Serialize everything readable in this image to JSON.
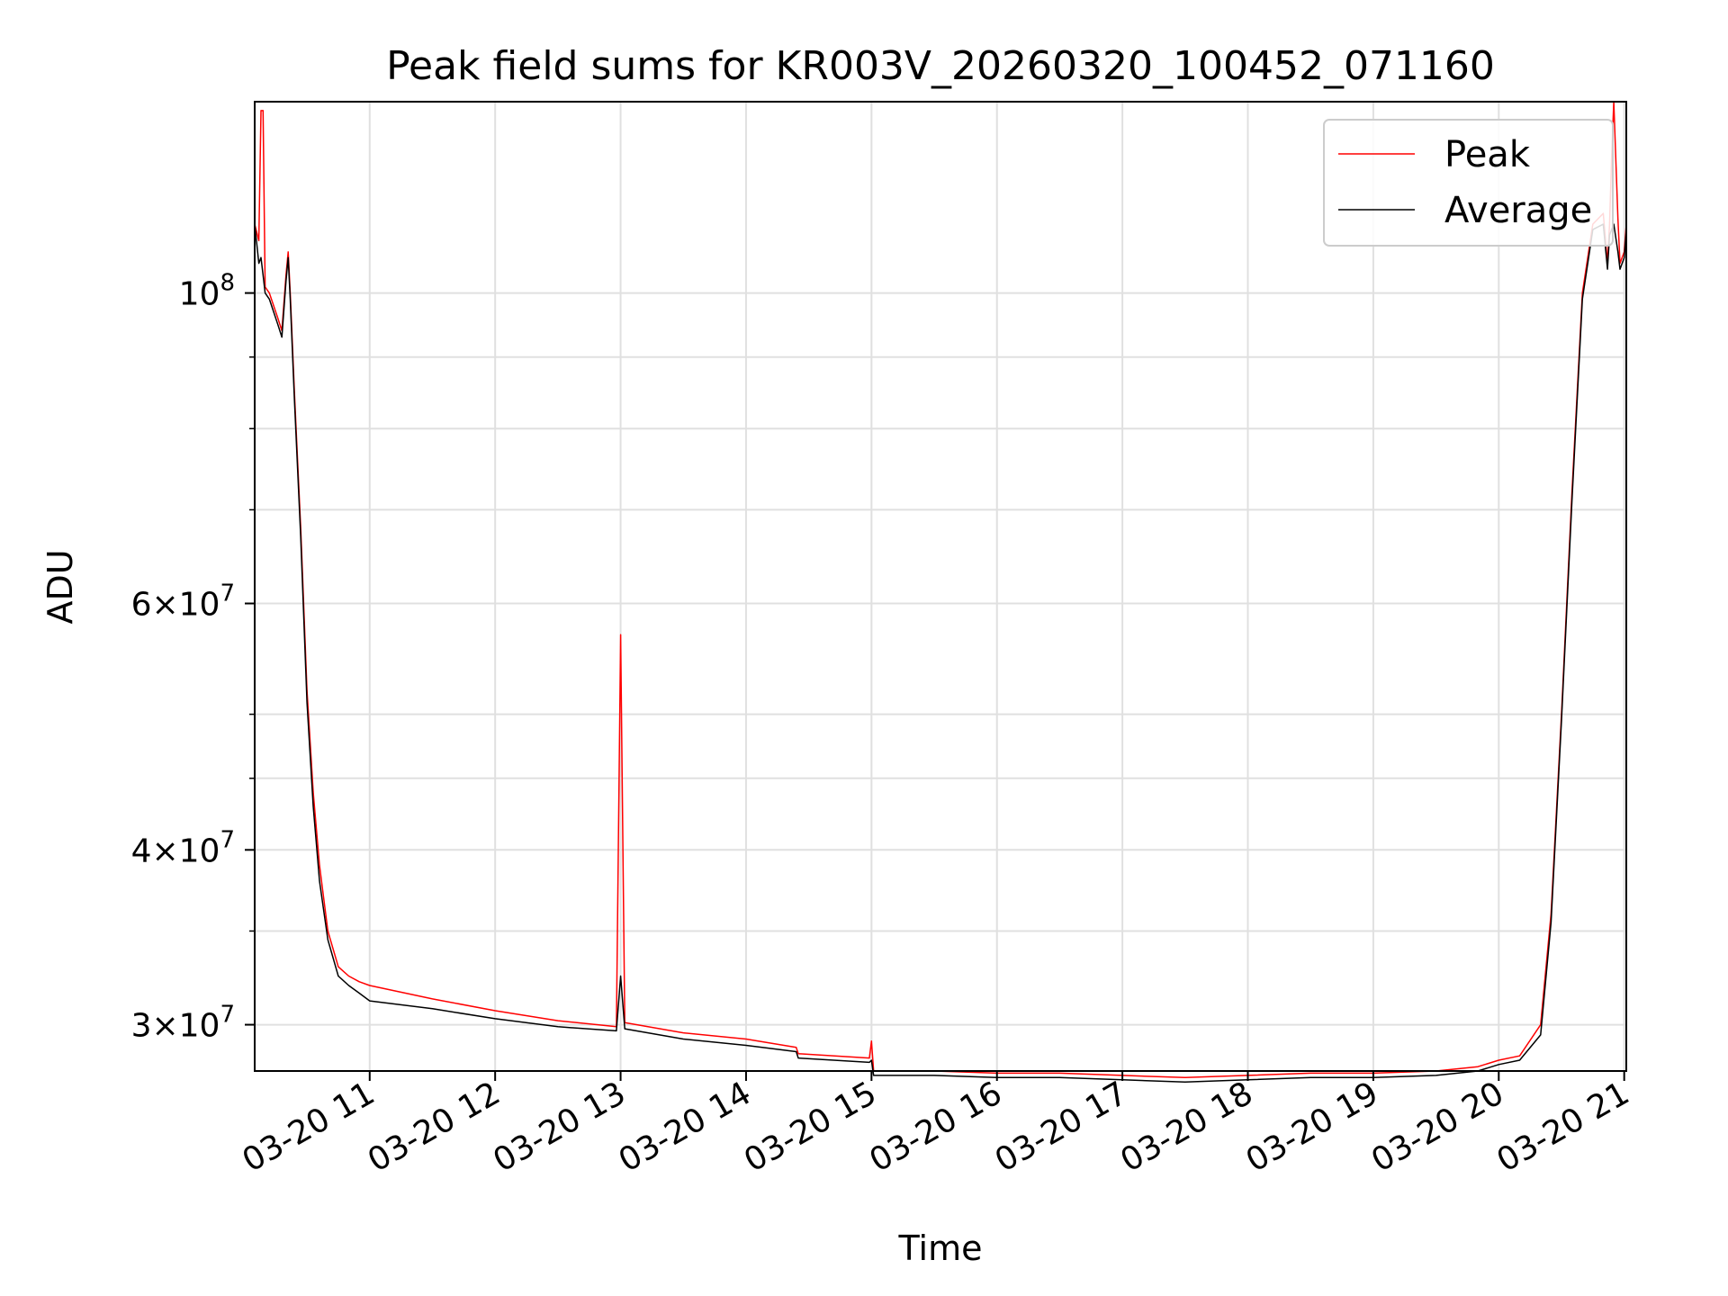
{
  "chart_data": {
    "type": "line",
    "title": "Peak field sums for KR003V_20260320_100452_071160",
    "xlabel": "Time",
    "ylabel": "ADU",
    "y_scale": "log",
    "ylim": [
      27800000,
      137000000
    ],
    "xlim": [
      "03-20 10:05",
      "03-20 21:01"
    ],
    "x_ticks": [
      "03-20 11",
      "03-20 12",
      "03-20 13",
      "03-20 14",
      "03-20 15",
      "03-20 16",
      "03-20 17",
      "03-20 18",
      "03-20 19",
      "03-20 20",
      "03-20 21"
    ],
    "y_ticks": [
      {
        "value": 100000000,
        "label": "10^8"
      },
      {
        "value": 60000000,
        "label": "6×10^7"
      },
      {
        "value": 40000000,
        "label": "4×10^7"
      },
      {
        "value": 30000000,
        "label": "3×10^7"
      }
    ],
    "y_minor_ticks": [
      35000000,
      45000000,
      50000000,
      70000000,
      80000000,
      90000000
    ],
    "grid": true,
    "legend_position": "top-right",
    "colors": {
      "peak": "#ff0000",
      "average": "#000000",
      "grid": "#e0e0e0"
    },
    "series": [
      {
        "name": "Peak",
        "x": [
          "03-20 10:05",
          "03-20 10:07",
          "03-20 10:08",
          "03-20 10:09",
          "03-20 10:10",
          "03-20 10:12",
          "03-20 10:14",
          "03-20 10:16",
          "03-20 10:18",
          "03-20 10:20",
          "03-20 10:21",
          "03-20 10:22",
          "03-20 10:24",
          "03-20 10:27",
          "03-20 10:30",
          "03-20 10:33",
          "03-20 10:36",
          "03-20 10:40",
          "03-20 10:45",
          "03-20 10:50",
          "03-20 10:55",
          "03-20 11:00",
          "03-20 11:30",
          "03-20 12:00",
          "03-20 12:30",
          "03-20 12:58",
          "03-20 13:00",
          "03-20 13:02",
          "03-20 13:30",
          "03-20 14:00",
          "03-20 14:24",
          "03-20 14:25",
          "03-20 14:59",
          "03-20 15:00",
          "03-20 15:01",
          "03-20 15:30",
          "03-20 16:00",
          "03-20 16:30",
          "03-20 17:00",
          "03-20 17:30",
          "03-20 18:00",
          "03-20 18:30",
          "03-20 19:00",
          "03-20 19:30",
          "03-20 19:50",
          "03-20 20:00",
          "03-20 20:10",
          "03-20 20:20",
          "03-20 20:25",
          "03-20 20:30",
          "03-20 20:35",
          "03-20 20:40",
          "03-20 20:45",
          "03-20 20:50",
          "03-20 20:52",
          "03-20 20:53",
          "03-20 20:54",
          "03-20 20:55",
          "03-20 20:57",
          "03-20 20:58",
          "03-20 21:00",
          "03-20 21:01"
        ],
        "values": [
          112000000,
          109000000,
          135000000,
          135000000,
          101000000,
          100000000,
          98000000,
          96000000,
          94000000,
          103000000,
          107000000,
          100000000,
          85000000,
          68000000,
          52000000,
          44000000,
          39000000,
          35000000,
          33000000,
          32500000,
          32200000,
          32000000,
          31300000,
          30700000,
          30200000,
          29900000,
          57000000,
          30100000,
          29600000,
          29300000,
          28900000,
          28600000,
          28400000,
          29200000,
          27800000,
          27800000,
          27700000,
          27700000,
          27600000,
          27500000,
          27600000,
          27700000,
          27700000,
          27800000,
          28000000,
          28300000,
          28500000,
          30000000,
          36000000,
          50000000,
          72000000,
          100000000,
          112000000,
          114000000,
          105000000,
          112000000,
          125000000,
          137000000,
          113000000,
          105000000,
          107000000,
          112000000
        ]
      },
      {
        "name": "Average",
        "x": [
          "03-20 10:05",
          "03-20 10:07",
          "03-20 10:08",
          "03-20 10:09",
          "03-20 10:10",
          "03-20 10:12",
          "03-20 10:14",
          "03-20 10:16",
          "03-20 10:18",
          "03-20 10:20",
          "03-20 10:21",
          "03-20 10:22",
          "03-20 10:24",
          "03-20 10:27",
          "03-20 10:30",
          "03-20 10:33",
          "03-20 10:36",
          "03-20 10:40",
          "03-20 10:45",
          "03-20 10:50",
          "03-20 10:55",
          "03-20 11:00",
          "03-20 11:30",
          "03-20 12:00",
          "03-20 12:30",
          "03-20 12:58",
          "03-20 13:00",
          "03-20 13:02",
          "03-20 13:30",
          "03-20 14:00",
          "03-20 14:24",
          "03-20 14:25",
          "03-20 14:59",
          "03-20 15:00",
          "03-20 15:01",
          "03-20 15:30",
          "03-20 16:00",
          "03-20 16:30",
          "03-20 17:00",
          "03-20 17:30",
          "03-20 18:00",
          "03-20 18:30",
          "03-20 19:00",
          "03-20 19:30",
          "03-20 19:50",
          "03-20 20:00",
          "03-20 20:10",
          "03-20 20:20",
          "03-20 20:25",
          "03-20 20:30",
          "03-20 20:35",
          "03-20 20:40",
          "03-20 20:45",
          "03-20 20:50",
          "03-20 20:52",
          "03-20 20:53",
          "03-20 20:54",
          "03-20 20:55",
          "03-20 20:57",
          "03-20 20:58",
          "03-20 21:00",
          "03-20 21:01"
        ],
        "values": [
          112000000,
          105000000,
          106000000,
          103000000,
          100000000,
          99000000,
          97000000,
          95000000,
          93000000,
          102000000,
          106000000,
          99000000,
          84000000,
          67000000,
          51000000,
          43000000,
          38000000,
          34500000,
          32500000,
          32000000,
          31600000,
          31200000,
          30800000,
          30300000,
          29900000,
          29700000,
          32500000,
          29800000,
          29300000,
          29000000,
          28700000,
          28400000,
          28200000,
          28300000,
          27600000,
          27600000,
          27500000,
          27500000,
          27400000,
          27300000,
          27400000,
          27500000,
          27500000,
          27600000,
          27800000,
          28100000,
          28300000,
          29500000,
          35500000,
          49500000,
          71000000,
          99000000,
          111000000,
          112000000,
          104000000,
          110000000,
          111000000,
          112000000,
          107000000,
          104000000,
          106000000,
          111000000
        ]
      }
    ]
  }
}
